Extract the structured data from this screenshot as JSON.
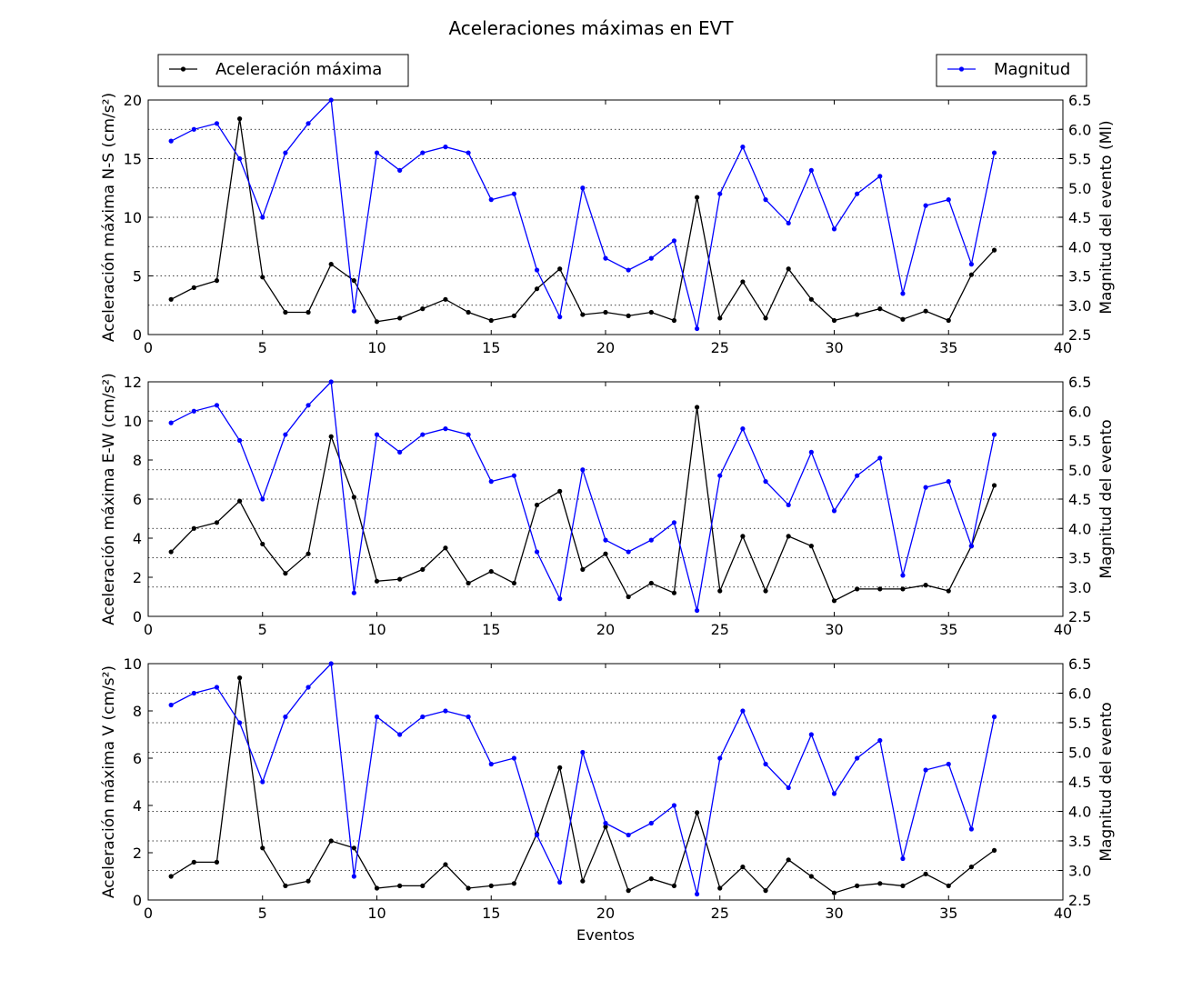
{
  "chart_data": {
    "type": "line",
    "title": "Aceleraciones máximas en EVT",
    "xlabel": "Eventos",
    "legend": {
      "left": {
        "label": "Aceleración máxima",
        "placement": "top-left"
      },
      "right": {
        "label": "Magnitud",
        "placement": "top-right"
      }
    },
    "colors": {
      "acceleration": "#000000",
      "magnitude": "#0000ff",
      "grid": "#000000"
    },
    "x": [
      1,
      2,
      3,
      4,
      5,
      6,
      7,
      8,
      9,
      10,
      11,
      12,
      13,
      14,
      15,
      16,
      17,
      18,
      19,
      20,
      21,
      22,
      23,
      24,
      25,
      26,
      27,
      28,
      29,
      30,
      31,
      32,
      33,
      34,
      35,
      36,
      37
    ],
    "xlim": [
      0,
      40
    ],
    "xticks": [
      0,
      5,
      10,
      15,
      20,
      25,
      30,
      35,
      40
    ],
    "magnitude": [
      5.8,
      6.0,
      6.1,
      5.5,
      4.5,
      5.6,
      6.1,
      6.5,
      2.9,
      5.6,
      5.3,
      5.6,
      5.7,
      5.6,
      4.8,
      4.9,
      3.6,
      2.8,
      5.0,
      3.8,
      3.6,
      3.8,
      4.1,
      2.6,
      4.9,
      5.7,
      4.8,
      4.4,
      5.3,
      4.3,
      4.9,
      5.2,
      3.2,
      4.7,
      4.8,
      3.7,
      5.6
    ],
    "right_ylim": [
      2.5,
      6.5
    ],
    "right_yticks": [
      2.5,
      3.0,
      3.5,
      4.0,
      4.5,
      5.0,
      5.5,
      6.0,
      6.5
    ],
    "panels": [
      {
        "name": "ns",
        "ylabel": "Aceleración máxima N-S (cm/s²)",
        "ylabel_right": "Magnitud del evento (Ml)",
        "ylim": [
          0,
          20
        ],
        "yticks": [
          0,
          5,
          10,
          15,
          20
        ],
        "acceleration": [
          3.0,
          4.0,
          4.6,
          18.4,
          4.9,
          1.9,
          1.9,
          6.0,
          4.6,
          1.1,
          1.4,
          2.2,
          3.0,
          1.9,
          1.2,
          1.6,
          3.9,
          5.6,
          1.7,
          1.9,
          1.6,
          1.9,
          1.2,
          11.7,
          1.4,
          4.5,
          1.4,
          5.6,
          3.0,
          1.2,
          1.7,
          2.2,
          1.3,
          2.0,
          1.2,
          5.1,
          7.2
        ]
      },
      {
        "name": "ew",
        "ylabel": "Aceleración máxima E-W (cm/s²)",
        "ylabel_right": "Magnitud del evento",
        "ylim": [
          0,
          12
        ],
        "yticks": [
          0,
          2,
          4,
          6,
          8,
          10,
          12
        ],
        "acceleration": [
          3.3,
          4.5,
          4.8,
          5.9,
          3.7,
          2.2,
          3.2,
          9.2,
          6.1,
          1.8,
          1.9,
          2.4,
          3.5,
          1.7,
          2.3,
          1.7,
          5.7,
          6.4,
          2.4,
          3.2,
          1.0,
          1.7,
          1.2,
          10.7,
          1.3,
          4.1,
          1.3,
          4.1,
          3.6,
          0.8,
          1.4,
          1.4,
          1.4,
          1.6,
          1.3,
          3.6,
          6.7
        ]
      },
      {
        "name": "v",
        "ylabel": "Aceleración máxima V (cm/s²)",
        "ylabel_right": "Magnitud del evento",
        "ylim": [
          0,
          10
        ],
        "yticks": [
          0,
          2,
          4,
          6,
          8,
          10
        ],
        "acceleration": [
          1.0,
          1.6,
          1.6,
          9.4,
          2.2,
          0.6,
          0.8,
          2.5,
          2.2,
          0.5,
          0.6,
          0.6,
          1.5,
          0.5,
          0.6,
          0.7,
          2.8,
          5.6,
          0.8,
          3.1,
          0.4,
          0.9,
          0.6,
          3.7,
          0.5,
          1.4,
          0.4,
          1.7,
          1.0,
          0.3,
          0.6,
          0.7,
          0.6,
          1.1,
          0.6,
          1.4,
          2.1
        ]
      }
    ]
  }
}
